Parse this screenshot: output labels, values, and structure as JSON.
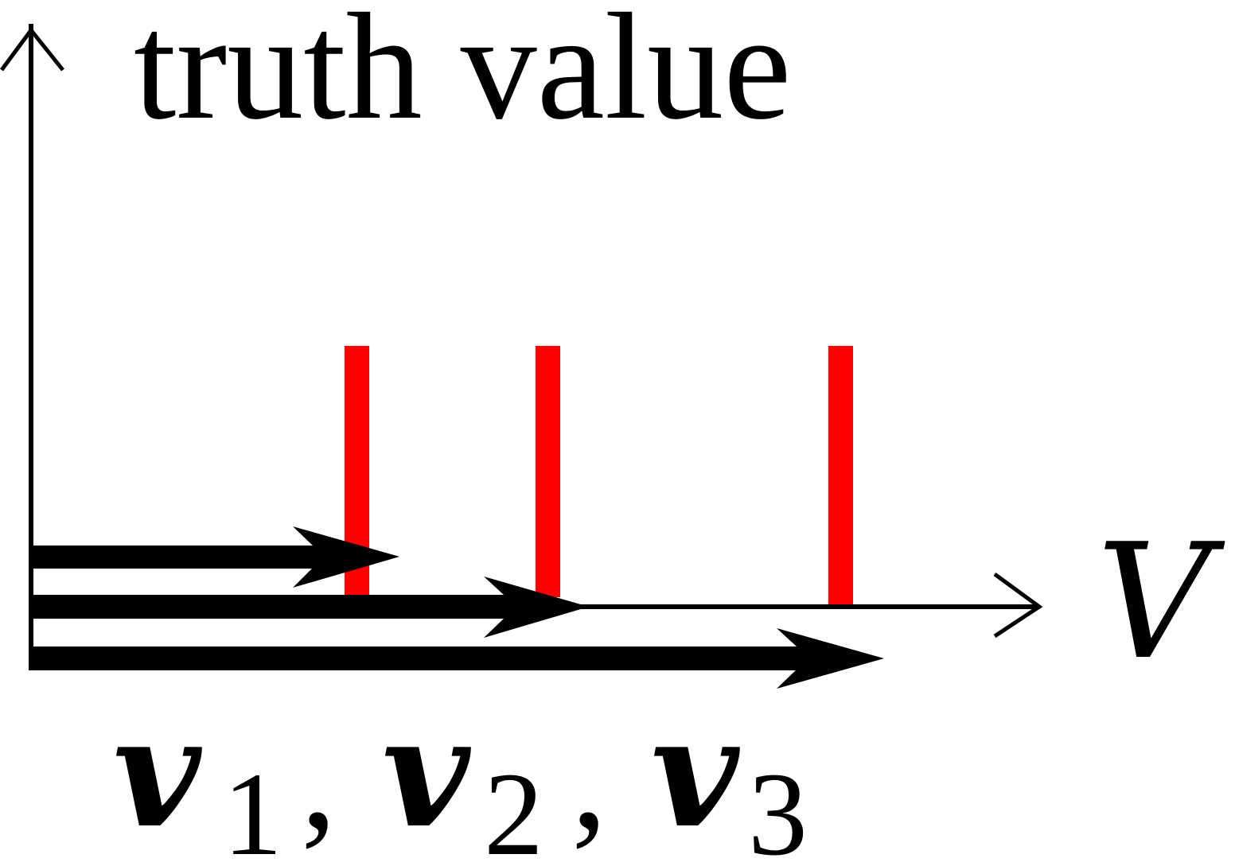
{
  "diagram": {
    "y_axis_label": "truth value",
    "x_axis_label": "V",
    "colors": {
      "axis": "#000000",
      "vector": "#000000",
      "marker": "#ff0000"
    },
    "red_markers": [
      {
        "name": "marker-1"
      },
      {
        "name": "marker-2"
      },
      {
        "name": "marker-3"
      }
    ],
    "vectors": [
      {
        "name": "v1"
      },
      {
        "name": "v2"
      },
      {
        "name": "v3"
      }
    ],
    "vector_caption": {
      "v": "v",
      "s1": "1",
      "s2": "2",
      "s3": "3",
      "comma": ","
    }
  }
}
